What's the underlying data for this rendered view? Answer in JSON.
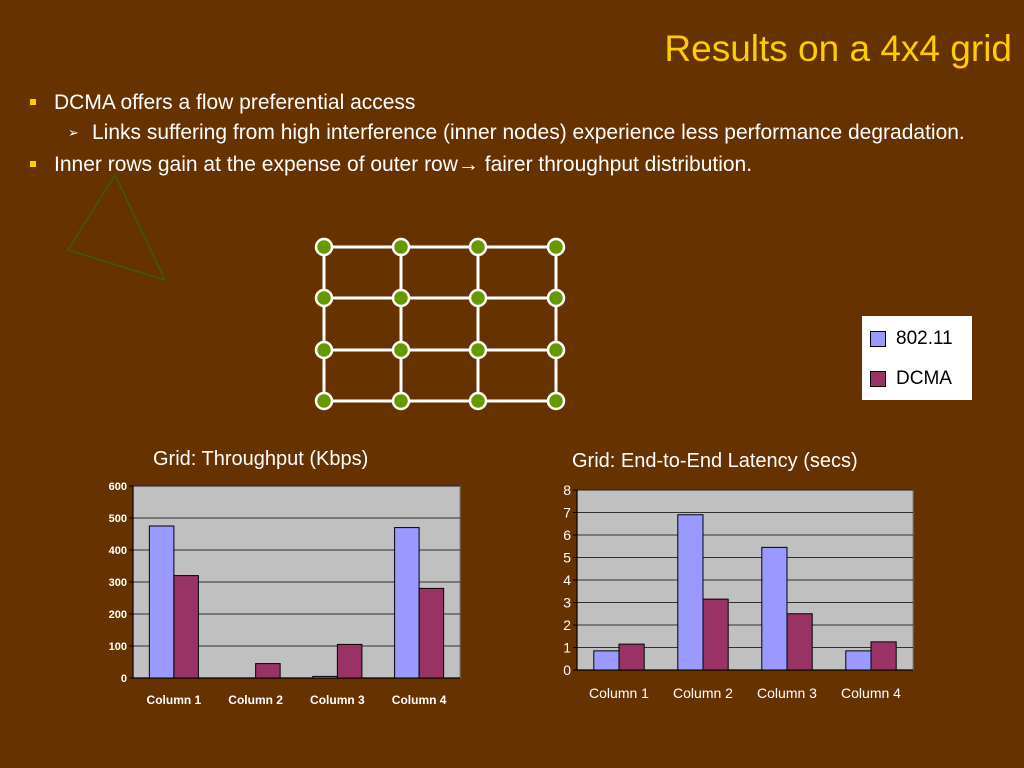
{
  "slide": {
    "title": "Results on a 4x4 grid",
    "bullets": [
      {
        "text": "DCMA offers a flow preferential access"
      },
      {
        "text": "Links suffering from high interference (inner nodes) experience less performance degradation."
      },
      {
        "text_before": "Inner rows gain at the expense of outer row",
        "arrow": "→",
        "text_after": " fairer throughput distribution."
      }
    ]
  },
  "legend": {
    "items": [
      {
        "label": "802.11",
        "color": "#9999ff"
      },
      {
        "label": "DCMA",
        "color": "#993366"
      }
    ]
  },
  "colors": {
    "background": "#663300",
    "title": "#ffcc00",
    "grid_line": "#ffffff",
    "grid_node": "#669900",
    "plot_bg": "#c0c0c0",
    "series_802": "#9999ff",
    "series_dcma": "#993366"
  },
  "chart_data": [
    {
      "type": "bar",
      "title": "Grid: Throughput (Kbps)",
      "categories": [
        "Column 1",
        "Column 2",
        "Column 3",
        "Column 4"
      ],
      "series": [
        {
          "name": "802.11",
          "values": [
            475,
            0,
            5,
            470
          ]
        },
        {
          "name": "DCMA",
          "values": [
            320,
            45,
            105,
            280
          ]
        }
      ],
      "ylim": [
        0,
        600
      ],
      "yticks": [
        0,
        100,
        200,
        300,
        400,
        500,
        600
      ],
      "grid": true
    },
    {
      "type": "bar",
      "title": "Grid: End-to-End Latency (secs)",
      "categories": [
        "Column 1",
        "Column 2",
        "Column 3",
        "Column 4"
      ],
      "series": [
        {
          "name": "802.11",
          "values": [
            0.85,
            6.9,
            5.45,
            0.85
          ]
        },
        {
          "name": "DCMA",
          "values": [
            1.15,
            3.15,
            2.5,
            1.25
          ]
        }
      ],
      "ylim": [
        0,
        8
      ],
      "yticks": [
        0,
        1,
        2,
        3,
        4,
        5,
        6,
        7,
        8
      ],
      "grid": true
    }
  ]
}
